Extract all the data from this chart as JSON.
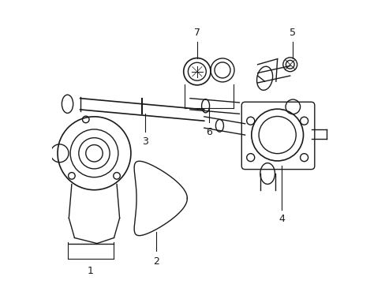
{
  "title": "",
  "background_color": "#ffffff",
  "figure_width": 4.89,
  "figure_height": 3.6,
  "dpi": 100,
  "line_color": "#1a1a1a",
  "line_width": 1.0,
  "label_fontsize": 9
}
